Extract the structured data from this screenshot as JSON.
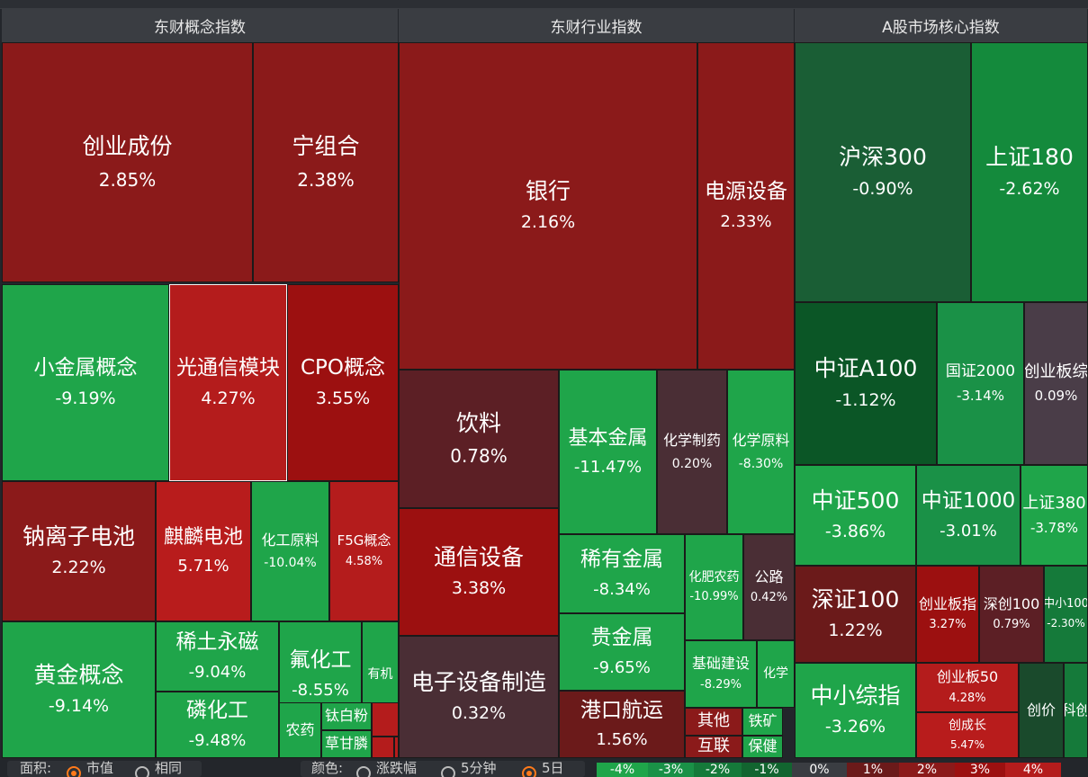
{
  "panels": [
    {
      "title": "东财概念指数"
    },
    {
      "title": "东财行业指数"
    },
    {
      "title": "A股市场核心指数"
    }
  ],
  "tiles": [
    {
      "name": "创业成份",
      "pct": "2.85%",
      "color": "#8b1a1a"
    },
    {
      "name": "宁组合",
      "pct": "2.38%",
      "color": "#8b1a1a"
    },
    {
      "name": "小金属概念",
      "pct": "-9.19%",
      "color": "#1fa54a"
    },
    {
      "name": "光通信模块",
      "pct": "4.27%",
      "color": "#b41c1c"
    },
    {
      "name": "CPO概念",
      "pct": "3.55%",
      "color": "#9c1010"
    },
    {
      "name": "钠离子电池",
      "pct": "2.22%",
      "color": "#8b1a1a"
    },
    {
      "name": "麒麟电池",
      "pct": "5.71%",
      "color": "#b81c1c"
    },
    {
      "name": "化工原料",
      "pct": "-10.04%",
      "color": "#1fa54a"
    },
    {
      "name": "F5G概念",
      "pct": "4.58%",
      "color": "#b41c1c"
    },
    {
      "name": "黄金概念",
      "pct": "-9.14%",
      "color": "#1fa54a"
    },
    {
      "name": "稀土永磁",
      "pct": "-9.04%",
      "color": "#1fa54a"
    },
    {
      "name": "磷化工",
      "pct": "-9.48%",
      "color": "#1fa54a"
    },
    {
      "name": "氟化工",
      "pct": "-8.55%",
      "color": "#1fa54a"
    },
    {
      "name": "有机",
      "pct": "",
      "color": "#1fa54a"
    },
    {
      "name": "农药",
      "pct": "",
      "color": "#1fa54a"
    },
    {
      "name": "钛白粉",
      "pct": "",
      "color": "#1fa54a"
    },
    {
      "name": "草甘膦",
      "pct": "",
      "color": "#1fa54a"
    },
    {
      "name": "",
      "pct": "",
      "color": "#b41c1c"
    },
    {
      "name": "",
      "pct": "",
      "color": "#b41c1c"
    },
    {
      "name": "",
      "pct": "",
      "color": "#b41c1c"
    },
    {
      "name": "银行",
      "pct": "2.16%",
      "color": "#8b1a1a"
    },
    {
      "name": "电源设备",
      "pct": "2.33%",
      "color": "#8b1a1a"
    },
    {
      "name": "饮料",
      "pct": "0.78%",
      "color": "#5c1f25"
    },
    {
      "name": "基本金属",
      "pct": "-11.47%",
      "color": "#1fa54a"
    },
    {
      "name": "化学制药",
      "pct": "0.20%",
      "color": "#4a2e35"
    },
    {
      "name": "化学原料",
      "pct": "-8.30%",
      "color": "#1fa54a"
    },
    {
      "name": "通信设备",
      "pct": "3.38%",
      "color": "#9c1010"
    },
    {
      "name": "稀有金属",
      "pct": "-8.34%",
      "color": "#1fa54a"
    },
    {
      "name": "化肥农药",
      "pct": "-10.99%",
      "color": "#1fa54a"
    },
    {
      "name": "公路",
      "pct": "0.42%",
      "color": "#4a2e35"
    },
    {
      "name": "贵金属",
      "pct": "-9.65%",
      "color": "#1fa54a"
    },
    {
      "name": "基础建设",
      "pct": "-8.29%",
      "color": "#1fa54a"
    },
    {
      "name": "化学",
      "pct": "",
      "color": "#1fa54a"
    },
    {
      "name": "电子设备制造",
      "pct": "0.32%",
      "color": "#4a2e35"
    },
    {
      "name": "港口航运",
      "pct": "1.56%",
      "color": "#6b1a1a"
    },
    {
      "name": "其他",
      "pct": "",
      "color": "#8b1a1a"
    },
    {
      "name": "铁矿",
      "pct": "",
      "color": "#1fa54a"
    },
    {
      "name": "互联",
      "pct": "",
      "color": "#8b1a1a"
    },
    {
      "name": "保健",
      "pct": "",
      "color": "#1fa54a"
    },
    {
      "name": "沪深300",
      "pct": "-0.90%",
      "color": "#1a5e35"
    },
    {
      "name": "上证180",
      "pct": "-2.62%",
      "color": "#148a3c"
    },
    {
      "name": "中证A100",
      "pct": "-1.12%",
      "color": "#0b5626"
    },
    {
      "name": "国证2000",
      "pct": "-3.14%",
      "color": "#1a9147"
    },
    {
      "name": "创业板综",
      "pct": "0.09%",
      "color": "#4a3d48"
    },
    {
      "name": "中证500",
      "pct": "-3.86%",
      "color": "#1fa54a"
    },
    {
      "name": "中证1000",
      "pct": "-3.01%",
      "color": "#1a9147"
    },
    {
      "name": "上证380",
      "pct": "-3.78%",
      "color": "#1fa54a"
    },
    {
      "name": "深证100",
      "pct": "1.22%",
      "color": "#6b1a1a"
    },
    {
      "name": "创业板指",
      "pct": "3.27%",
      "color": "#9c1010"
    },
    {
      "name": "深创100",
      "pct": "0.79%",
      "color": "#5c1f25"
    },
    {
      "name": "中小100",
      "pct": "-2.30%",
      "color": "#157a3a"
    },
    {
      "name": "中小综指",
      "pct": "-3.26%",
      "color": "#1fa54a"
    },
    {
      "name": "创业板50",
      "pct": "4.28%",
      "color": "#b41c1c"
    },
    {
      "name": "创价",
      "pct": "",
      "color": "#1a4a2c"
    },
    {
      "name": "科创",
      "pct": "",
      "color": "#157a3a"
    },
    {
      "name": "创成长",
      "pct": "5.47%",
      "color": "#b81c1c"
    }
  ],
  "bottom": {
    "area_label": "面积:",
    "area_opt1": "市值",
    "area_opt2": "相同",
    "color_label": "颜色:",
    "color_opt1": "涨跌幅",
    "color_opt2": "5分钟",
    "color_opt3": "5日",
    "selected_area": "市值",
    "selected_color": "5日"
  },
  "legend": [
    {
      "label": "-4%",
      "color": "#1fa54a"
    },
    {
      "label": "-3%",
      "color": "#1a9147"
    },
    {
      "label": "-2%",
      "color": "#157a3a"
    },
    {
      "label": "-1%",
      "color": "#126530"
    },
    {
      "label": "0%",
      "color": "#3a3d42"
    },
    {
      "label": "1%",
      "color": "#6b1a1a"
    },
    {
      "label": "2%",
      "color": "#8b1a1a"
    },
    {
      "label": "3%",
      "color": "#9c1010"
    },
    {
      "label": "4%",
      "color": "#b41c1c"
    }
  ]
}
